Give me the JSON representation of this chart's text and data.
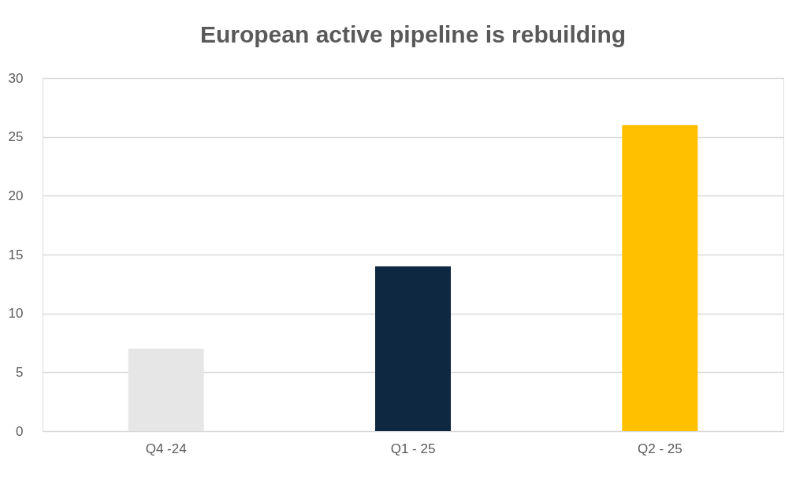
{
  "chart_data": {
    "type": "bar",
    "title": "European active pipeline is rebuilding",
    "categories": [
      "Q4 -24",
      "Q1 - 25",
      "Q2 - 25"
    ],
    "values": [
      7,
      14,
      26
    ],
    "colors": [
      "#e7e6e6",
      "#0e2841",
      "#ffc000"
    ],
    "ylim": [
      0,
      30
    ],
    "yticks": [
      0,
      5,
      10,
      15,
      20,
      25,
      30
    ],
    "grid": "y",
    "legend": false
  }
}
